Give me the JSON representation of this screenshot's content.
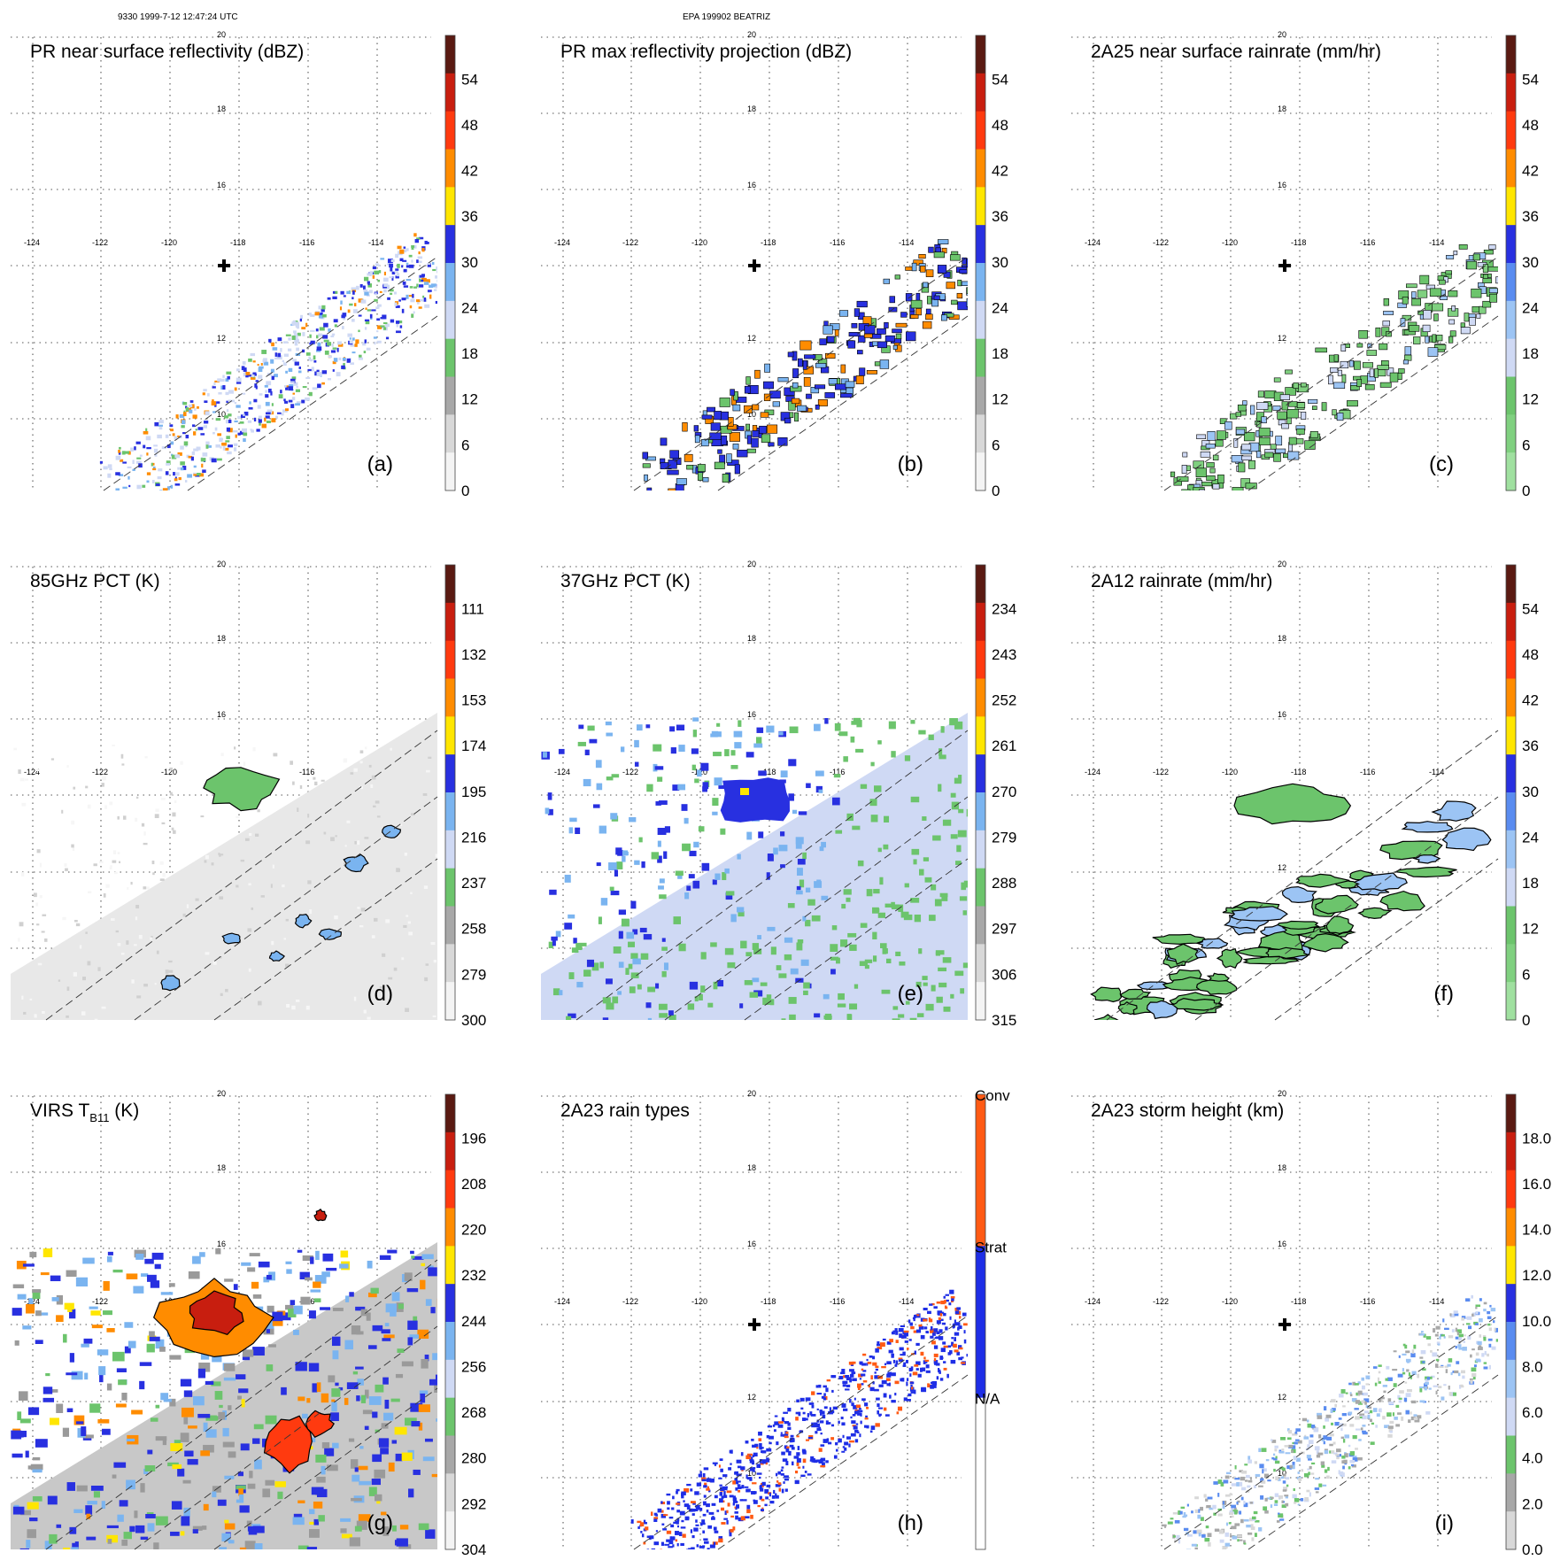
{
  "header": {
    "left": "9330 1999-7-12 12:47:24 UTC",
    "center": "EPA 199902 BEATRIZ"
  },
  "map": {
    "lon_ticks": [
      "-124",
      "-122",
      "-120",
      "-118",
      "-116",
      "-114"
    ],
    "lat_ticks": [
      "20",
      "18",
      "16",
      "12",
      "10"
    ],
    "storm_center_marker": "plus-symbol"
  },
  "chart_data": [
    {
      "type": "heatmap",
      "label": "(a)",
      "title": "PR near surface reflectivity (dBZ)",
      "colorbar": {
        "ticks": [
          "54",
          "48",
          "42",
          "36",
          "30",
          "24",
          "18",
          "12",
          "6",
          "0"
        ],
        "colors": [
          "#5a1a12",
          "#c81e0f",
          "#ff3a0f",
          "#ff8c00",
          "#ffe600",
          "#2830e0",
          "#7ab4f0",
          "#cfd9f4",
          "#6cc46c",
          "#a8a8a8",
          "#d8d8d8",
          "#f4f4f4"
        ]
      },
      "field": "pr-swath"
    },
    {
      "type": "heatmap",
      "label": "(b)",
      "title": "PR max reflectivity projection (dBZ)",
      "colorbar": {
        "ticks": [
          "54",
          "48",
          "42",
          "36",
          "30",
          "24",
          "18",
          "12",
          "6",
          "0"
        ],
        "colors": [
          "#5a1a12",
          "#c81e0f",
          "#ff3a0f",
          "#ff8c00",
          "#ffe600",
          "#2830e0",
          "#7ab4f0",
          "#cfd9f4",
          "#6cc46c",
          "#a8a8a8",
          "#d8d8d8",
          "#f4f4f4"
        ]
      },
      "field": "pr-swath-contoured"
    },
    {
      "type": "heatmap",
      "label": "(c)",
      "title": "2A25 near surface rainrate (mm/hr)",
      "colorbar": {
        "ticks": [
          "54",
          "48",
          "42",
          "36",
          "30",
          "24",
          "18",
          "12",
          "6",
          "0"
        ],
        "colors": [
          "#5a1a12",
          "#c81e0f",
          "#ff3a0f",
          "#ff8c00",
          "#ffe600",
          "#2830e0",
          "#5a8cf0",
          "#9cc4f4",
          "#cfd9f4",
          "#6cc46c",
          "#80d080",
          "#a0e0a0"
        ]
      },
      "field": "pr-swath-green"
    },
    {
      "type": "heatmap",
      "label": "(d)",
      "title": "85GHz PCT (K)",
      "colorbar": {
        "ticks": [
          "111",
          "132",
          "153",
          "174",
          "195",
          "216",
          "237",
          "258",
          "279",
          "300"
        ],
        "colors": [
          "#5a1a12",
          "#c81e0f",
          "#ff3a0f",
          "#ff8c00",
          "#ffe600",
          "#2830e0",
          "#7ab4f0",
          "#cfd9f4",
          "#6cc46c",
          "#a8a8a8",
          "#d8d8d8",
          "#f4f4f4"
        ]
      },
      "field": "tmi-85"
    },
    {
      "type": "heatmap",
      "label": "(e)",
      "title": "37GHz PCT (K)",
      "colorbar": {
        "ticks": [
          "234",
          "243",
          "252",
          "261",
          "270",
          "279",
          "288",
          "297",
          "306",
          "315"
        ],
        "colors": [
          "#5a1a12",
          "#c81e0f",
          "#ff3a0f",
          "#ff8c00",
          "#ffe600",
          "#2830e0",
          "#7ab4f0",
          "#cfd9f4",
          "#6cc46c",
          "#a8a8a8",
          "#d8d8d8",
          "#f4f4f4"
        ]
      },
      "field": "tmi-37"
    },
    {
      "type": "heatmap",
      "label": "(f)",
      "title": "2A12 rainrate (mm/hr)",
      "colorbar": {
        "ticks": [
          "54",
          "48",
          "42",
          "36",
          "30",
          "24",
          "18",
          "12",
          "6",
          "0"
        ],
        "colors": [
          "#5a1a12",
          "#c81e0f",
          "#ff3a0f",
          "#ff8c00",
          "#ffe600",
          "#2830e0",
          "#5a8cf0",
          "#9cc4f4",
          "#cfd9f4",
          "#6cc46c",
          "#80d080",
          "#a0e0a0"
        ]
      },
      "field": "tmi-rain"
    },
    {
      "type": "heatmap",
      "label": "(g)",
      "title": "VIRS T",
      "title_sub": "B11",
      "title_suffix": " (K)",
      "colorbar": {
        "ticks": [
          "196",
          "208",
          "220",
          "232",
          "244",
          "256",
          "268",
          "280",
          "292",
          "304"
        ],
        "colors": [
          "#5a1a12",
          "#c81e0f",
          "#ff3a0f",
          "#ff8c00",
          "#ffe600",
          "#2830e0",
          "#7ab4f0",
          "#cfd9f4",
          "#6cc46c",
          "#a8a8a8",
          "#d8d8d8",
          "#f4f4f4"
        ]
      },
      "field": "virs"
    },
    {
      "type": "heatmap",
      "label": "(h)",
      "title": "2A23 rain types",
      "colorbar": {
        "ticks": [
          "Conv",
          "Strat",
          "N/A"
        ],
        "colors": [
          "#ff5a14",
          "#1e2ee6",
          "#ffffff"
        ]
      },
      "field": "rain-types"
    },
    {
      "type": "heatmap",
      "label": "(i)",
      "title": "2A23 storm height (km)",
      "colorbar": {
        "ticks": [
          "18.0",
          "16.0",
          "14.0",
          "12.0",
          "10.0",
          "8.0",
          "6.0",
          "4.0",
          "2.0",
          "0.0"
        ],
        "colors": [
          "#5a1a12",
          "#c81e0f",
          "#ff3a0f",
          "#ff8c00",
          "#ffe600",
          "#2830e0",
          "#5a8cf0",
          "#9cc4f4",
          "#cfd9f4",
          "#6cc46c",
          "#a8a8a8",
          "#d8d8d8"
        ]
      },
      "field": "storm-height"
    }
  ]
}
